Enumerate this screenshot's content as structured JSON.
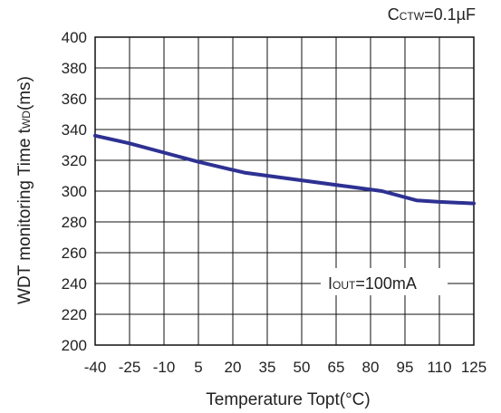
{
  "chart_data": {
    "type": "line",
    "condition": {
      "main": "C",
      "sub": "CTW",
      "rest": "=0.1µF"
    },
    "annotation": {
      "main": "I",
      "sub": "OUT",
      "rest": "=100mA"
    },
    "ylabel": {
      "main": "WDT monitoring Time t",
      "sub": "WD",
      "rest": "(ms)"
    },
    "xlabel": "Temperature Topt(°C)",
    "xlim": [
      -40,
      125
    ],
    "ylim": [
      200,
      400
    ],
    "x_ticks": [
      -40,
      -25,
      -10,
      5,
      20,
      35,
      50,
      65,
      80,
      95,
      110,
      125
    ],
    "y_ticks": [
      200,
      220,
      240,
      260,
      280,
      300,
      320,
      340,
      360,
      380,
      400
    ],
    "grid": true,
    "series": [
      {
        "x": [
          -40,
          -25,
          -10,
          5,
          25,
          50,
          70,
          85,
          100,
          110,
          125
        ],
        "y": [
          336,
          331,
          325,
          319,
          312,
          307,
          303,
          300,
          294,
          293,
          292
        ]
      }
    ],
    "line_color": "#2e3192"
  }
}
